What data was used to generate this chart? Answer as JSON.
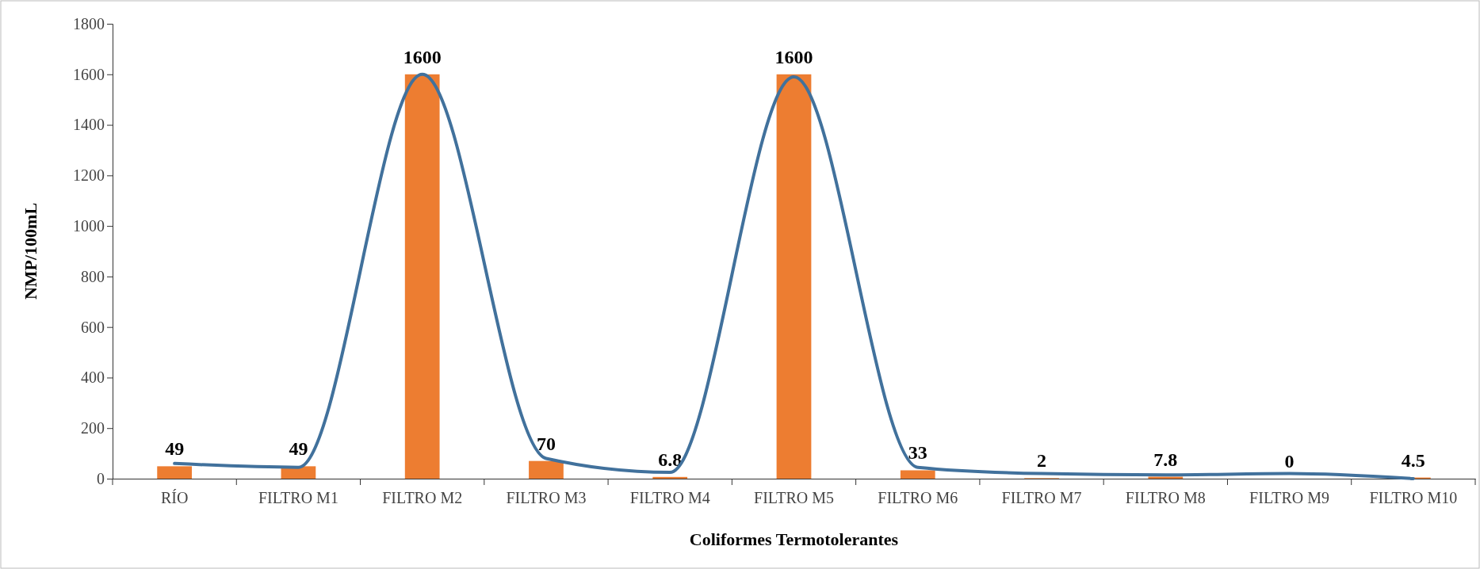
{
  "chart_data": {
    "type": "bar",
    "xlabel": "Coliformes  Termotolerantes",
    "ylabel": "NMP/100mL",
    "categories": [
      "RÍO",
      "FILTRO M1",
      "FILTRO M2",
      "FILTRO M3",
      "FILTRO M4",
      "FILTRO M5",
      "FILTRO M6",
      "FILTRO M7",
      "FILTRO M8",
      "FILTRO M9",
      "FILTRO M10"
    ],
    "series": [
      {
        "color": "#ed7d31",
        "values": [
          49,
          49,
          1600,
          70,
          6.8,
          1600,
          33,
          2,
          7.8,
          0,
          4.5
        ],
        "value_labels": [
          "49",
          "49",
          "1600",
          "70",
          "6.8",
          "1600",
          "33",
          "2",
          "7.8",
          "0",
          "4.5"
        ]
      },
      {
        "type": "line",
        "color": "#41719c",
        "values": [
          60,
          45,
          1600,
          80,
          25,
          1590,
          45,
          20,
          15,
          20,
          0
        ]
      }
    ],
    "ylim": [
      0,
      1800
    ],
    "yticks": [
      0,
      200,
      400,
      600,
      800,
      1000,
      1200,
      1400,
      1600,
      1800
    ],
    "grid": false,
    "marker": "none",
    "line_style": "solid"
  }
}
